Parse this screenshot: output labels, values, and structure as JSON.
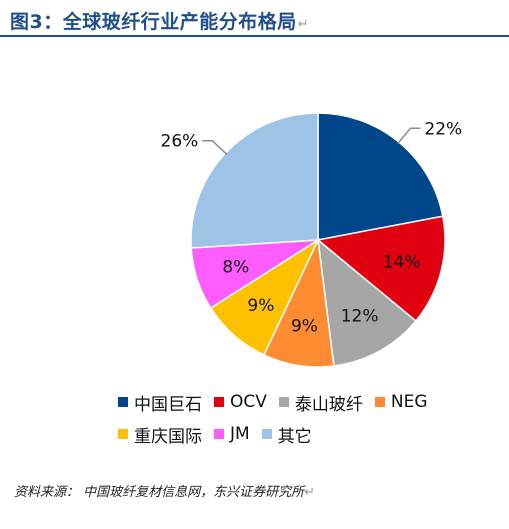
{
  "header": {
    "title": "图3：全球玻纤行业产能分布格局"
  },
  "chart_data": {
    "type": "pie",
    "title": "",
    "slices": [
      {
        "label": "中国巨石",
        "value": 22,
        "display": "22%",
        "color": "#00468b"
      },
      {
        "label": "OCV",
        "value": 14,
        "display": "14%",
        "color": "#e1000f"
      },
      {
        "label": "泰山玻纤",
        "value": 12,
        "display": "12%",
        "color": "#a6a6a6"
      },
      {
        "label": "NEG",
        "value": 9,
        "display": "9%",
        "color": "#ff8c32"
      },
      {
        "label": "重庆国际",
        "value": 9,
        "display": "9%",
        "color": "#ffc000"
      },
      {
        "label": "JM",
        "value": 8,
        "display": "8%",
        "color": "#ff5cff"
      },
      {
        "label": "其它",
        "value": 26,
        "display": "26%",
        "color": "#9dc3e6"
      }
    ],
    "legend_position": "bottom"
  },
  "footer": {
    "source": "资料来源：   中国玻纤复材信息网，东兴证券研究所"
  }
}
